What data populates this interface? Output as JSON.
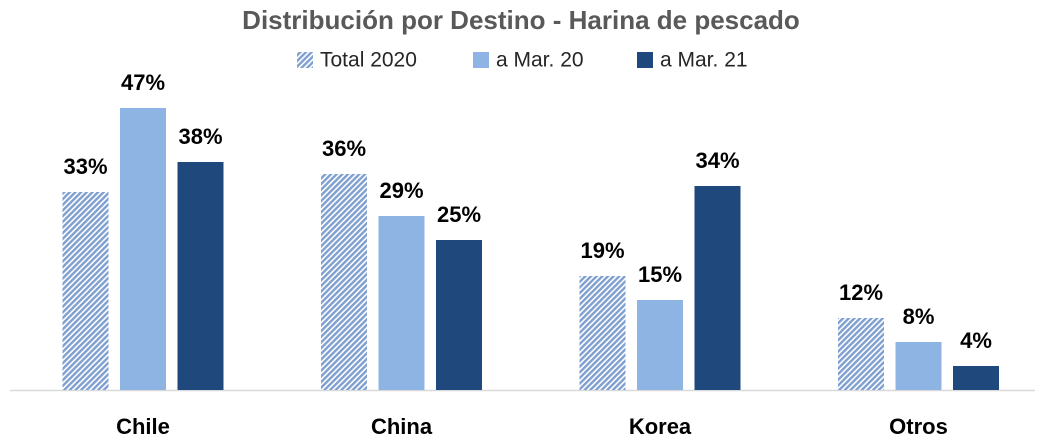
{
  "chart_data": {
    "type": "bar",
    "title": "Distribución por Destino - Harina de pescado",
    "categories": [
      "Chile",
      "China",
      "Korea",
      "Otros"
    ],
    "series": [
      {
        "name": "Total 2020",
        "color": "#7f9fd0",
        "hatch": true,
        "values": [
          33,
          36,
          19,
          12
        ],
        "value_labels": [
          "33%",
          "36%",
          "19%",
          "12%"
        ]
      },
      {
        "name": "a Mar. 20",
        "color": "#8eb4e3",
        "values": [
          47,
          29,
          15,
          8
        ],
        "value_labels": [
          "47%",
          "29%",
          "15%",
          "8%"
        ]
      },
      {
        "name": "a Mar. 21",
        "color": "#1f497d",
        "values": [
          38,
          25,
          34,
          4
        ],
        "value_labels": [
          "38%",
          "25%",
          "34%",
          "4%"
        ]
      }
    ],
    "legend": "top"
  }
}
